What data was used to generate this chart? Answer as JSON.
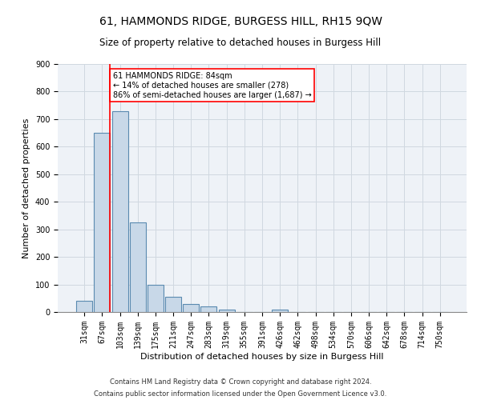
{
  "title": "61, HAMMONDS RIDGE, BURGESS HILL, RH15 9QW",
  "subtitle": "Size of property relative to detached houses in Burgess Hill",
  "xlabel": "Distribution of detached houses by size in Burgess Hill",
  "ylabel": "Number of detached properties",
  "footnote1": "Contains HM Land Registry data © Crown copyright and database right 2024.",
  "footnote2": "Contains public sector information licensed under the Open Government Licence v3.0.",
  "bin_labels": [
    "31sqm",
    "67sqm",
    "103sqm",
    "139sqm",
    "175sqm",
    "211sqm",
    "247sqm",
    "283sqm",
    "319sqm",
    "355sqm",
    "391sqm",
    "426sqm",
    "462sqm",
    "498sqm",
    "534sqm",
    "570sqm",
    "606sqm",
    "642sqm",
    "678sqm",
    "714sqm",
    "750sqm"
  ],
  "bar_heights": [
    40,
    650,
    730,
    325,
    100,
    55,
    30,
    20,
    10,
    0,
    0,
    10,
    0,
    0,
    0,
    0,
    0,
    0,
    0,
    0,
    0
  ],
  "bar_color": "#c8d8e8",
  "bar_edge_color": "#5a8ab0",
  "highlight_line_color": "red",
  "annotation_text": "61 HAMMONDS RIDGE: 84sqm\n← 14% of detached houses are smaller (278)\n86% of semi-detached houses are larger (1,687) →",
  "annotation_box_color": "white",
  "annotation_box_edge_color": "red",
  "ylim": [
    0,
    900
  ],
  "yticks": [
    0,
    100,
    200,
    300,
    400,
    500,
    600,
    700,
    800,
    900
  ],
  "grid_color": "#d0d8e0",
  "background_color": "#eef2f7",
  "title_fontsize": 10,
  "subtitle_fontsize": 8.5,
  "xlabel_fontsize": 8,
  "ylabel_fontsize": 8,
  "tick_fontsize": 7,
  "annotation_fontsize": 7,
  "footnote_fontsize": 6
}
